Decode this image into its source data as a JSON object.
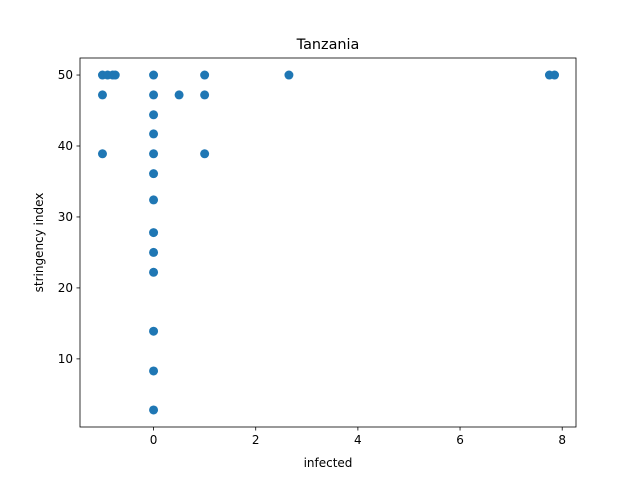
{
  "chart_data": {
    "type": "scatter",
    "title": "Tanzania",
    "xlabel": "infected",
    "ylabel": "stringency index",
    "xlim": [
      -1.44,
      8.27
    ],
    "ylim": [
      0.4,
      52.4
    ],
    "xticks": [
      0,
      2,
      4,
      6,
      8
    ],
    "yticks": [
      10,
      20,
      30,
      40,
      50
    ],
    "grid": false,
    "marker_color": "#1f77b4",
    "points": [
      {
        "x": -1,
        "y": 50
      },
      {
        "x": -1,
        "y": 47.2
      },
      {
        "x": -1,
        "y": 38.9
      },
      {
        "x": -0.9,
        "y": 50
      },
      {
        "x": -0.8,
        "y": 50
      },
      {
        "x": -0.75,
        "y": 50
      },
      {
        "x": 0,
        "y": 50
      },
      {
        "x": 0,
        "y": 47.2
      },
      {
        "x": 0,
        "y": 44.4
      },
      {
        "x": 0,
        "y": 41.7
      },
      {
        "x": 0,
        "y": 38.9
      },
      {
        "x": 0,
        "y": 36.1
      },
      {
        "x": 0,
        "y": 32.4
      },
      {
        "x": 0,
        "y": 27.8
      },
      {
        "x": 0,
        "y": 25
      },
      {
        "x": 0,
        "y": 22.2
      },
      {
        "x": 0,
        "y": 13.9
      },
      {
        "x": 0,
        "y": 8.3
      },
      {
        "x": 0,
        "y": 2.8
      },
      {
        "x": 0.5,
        "y": 47.2
      },
      {
        "x": 1,
        "y": 50
      },
      {
        "x": 1,
        "y": 47.2
      },
      {
        "x": 1,
        "y": 38.9
      },
      {
        "x": 2.65,
        "y": 50
      },
      {
        "x": 7.75,
        "y": 50
      },
      {
        "x": 7.85,
        "y": 50
      }
    ]
  }
}
